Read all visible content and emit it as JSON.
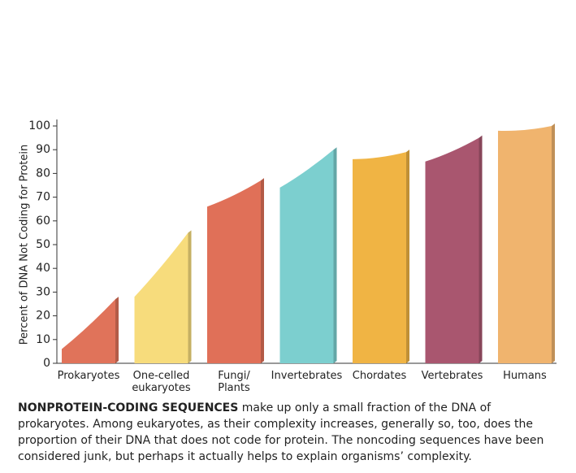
{
  "chart_data": {
    "type": "range-bar",
    "y_label": "Percent of DNA Not Coding for Protein",
    "categories": [
      "Prokaryotes",
      "One-celled\neukaryotes",
      "Fungi/\nPlants",
      "Invertebrates",
      "Chordates",
      "Vertebrates",
      "Humans"
    ],
    "low": [
      6,
      28,
      66,
      74,
      86,
      85,
      98
    ],
    "high": [
      27,
      55,
      77,
      90,
      89,
      95,
      100
    ],
    "colors": [
      "#e0735a",
      "#f7dc7c",
      "#e07058",
      "#7ccfcf",
      "#f0b444",
      "#a9566f",
      "#f0b46e"
    ],
    "ylim": [
      0,
      100
    ],
    "yticks": [
      0,
      10,
      20,
      30,
      40,
      50,
      60,
      70,
      80,
      90,
      100
    ]
  },
  "caption_lead": "NONPROTEIN-CODING SEQUENCES",
  "caption": "make up only a small fraction of the DNA of prokaryotes. Among eukaryotes, as their complexity increases, generally so, too, does the proportion of their DNA that does not code for protein. The noncoding sequences have been considered junk, but perhaps it actually helps to explain organisms’ complexity."
}
